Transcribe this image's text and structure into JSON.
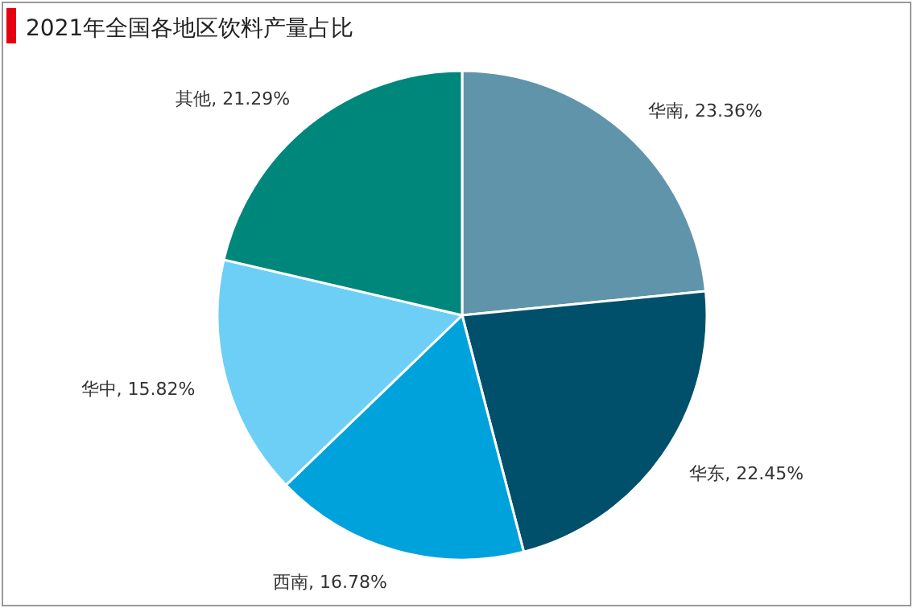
{
  "chart_data": {
    "type": "pie",
    "title": "2021年全国各地区饮料产量占比",
    "categories": [
      "华南",
      "华东",
      "西南",
      "华中",
      "其他"
    ],
    "values": [
      23.36,
      22.45,
      16.78,
      15.82,
      21.29
    ],
    "value_labels": [
      ", 23.36%",
      ", 22.45%",
      ", 16.78%",
      ", 15.82%",
      ", 21.29%"
    ],
    "colors": [
      "#6094aa",
      "#00506b",
      "#00a2dc",
      "#6dcff6",
      "#00877b"
    ]
  }
}
